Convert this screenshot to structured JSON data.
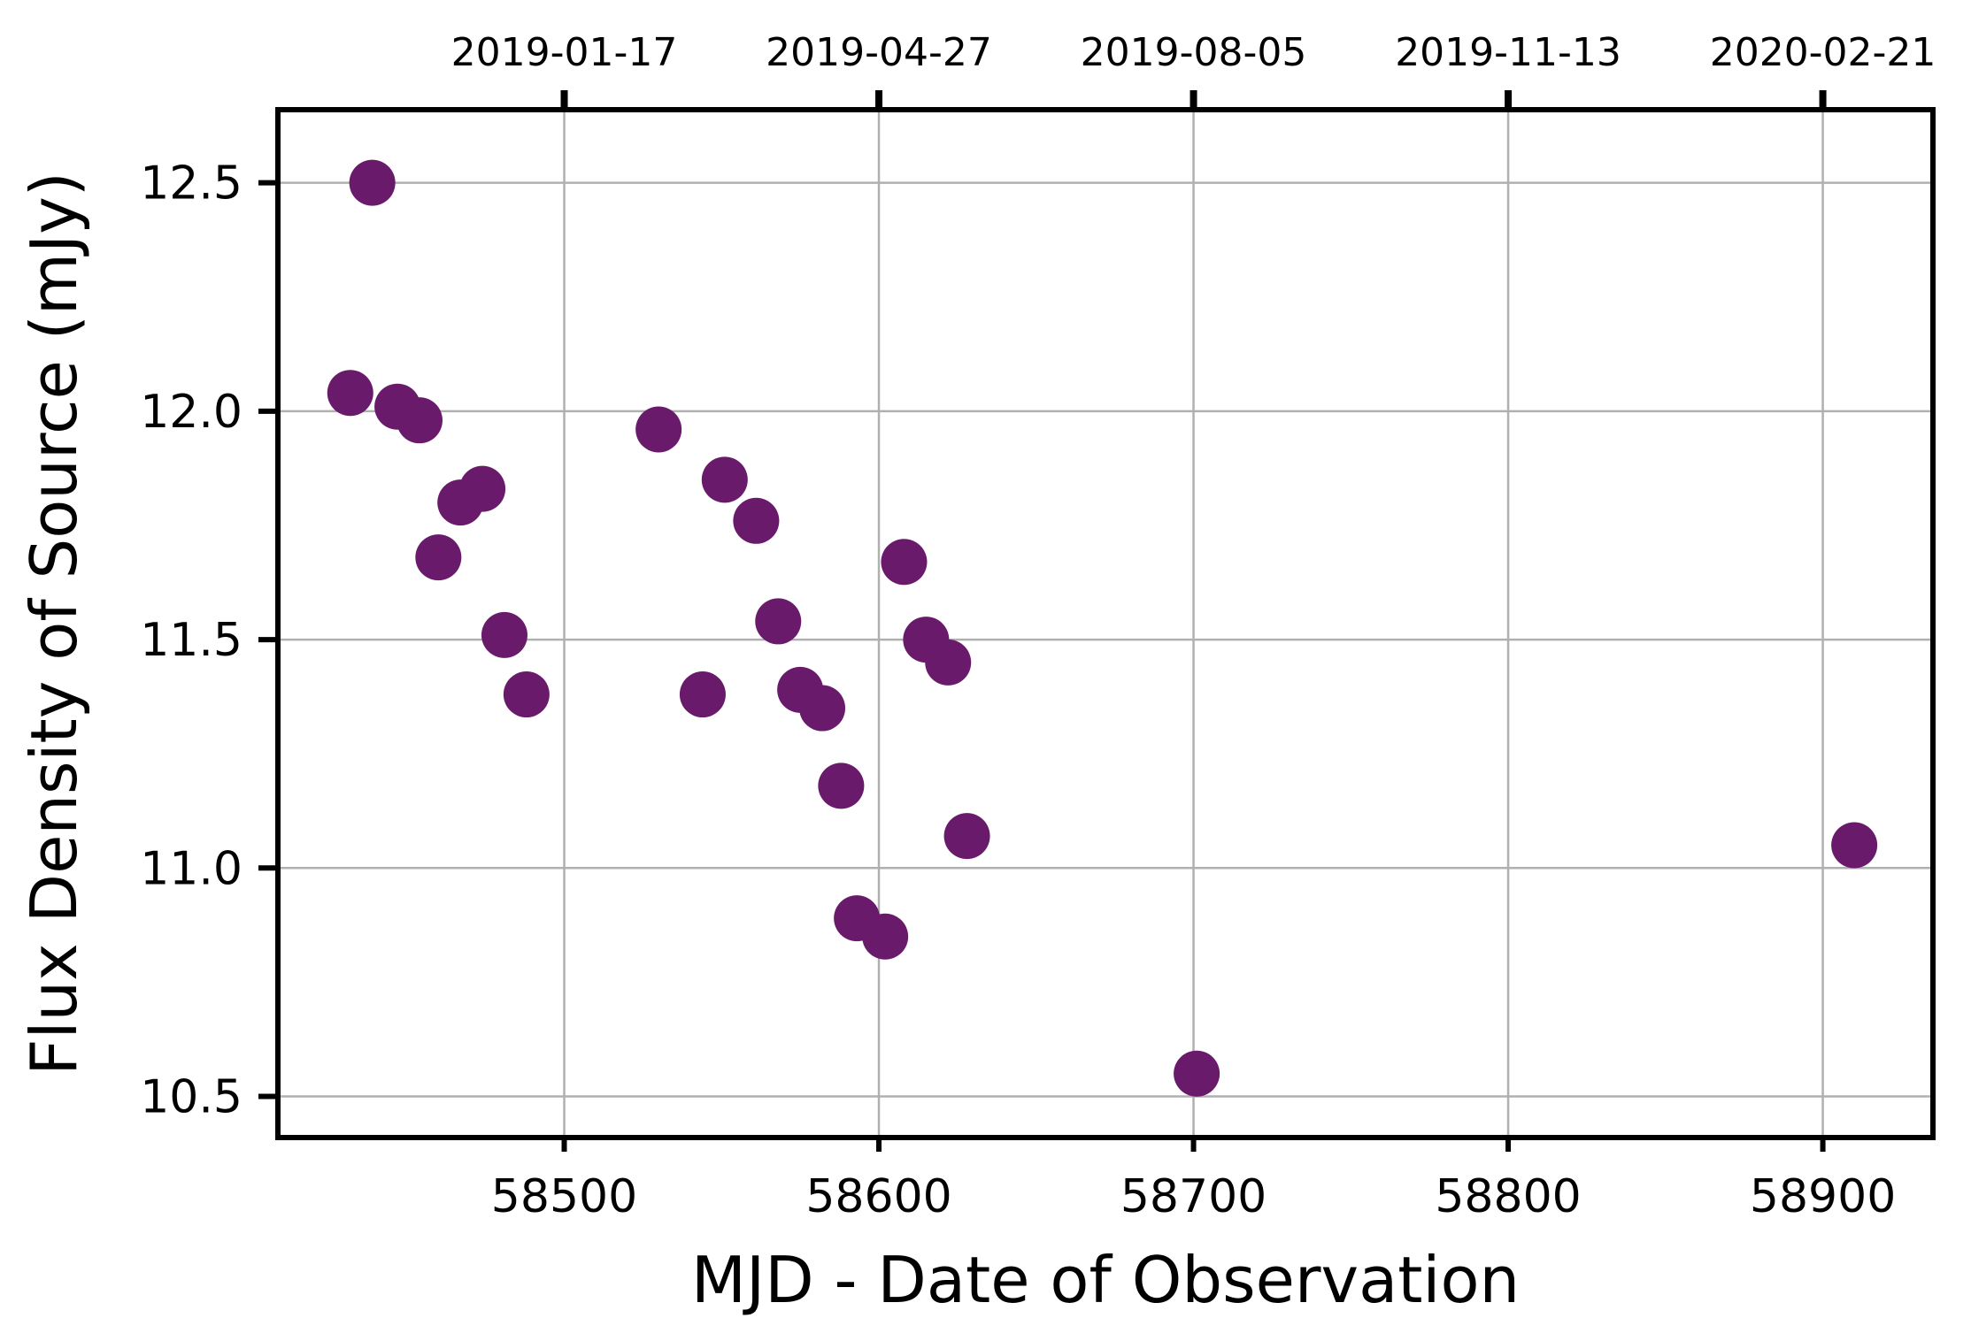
{
  "chart_data": {
    "type": "scatter",
    "title": "",
    "xlabel": "MJD - Date of Observation",
    "ylabel": "Flux Density of Source (mJy)",
    "xlim": [
      58409,
      58935
    ],
    "ylim": [
      10.41,
      12.66
    ],
    "x_ticks": [
      58500,
      58600,
      58700,
      58800,
      58900
    ],
    "x_tick_labels": [
      "58500",
      "58600",
      "58700",
      "58800",
      "58900"
    ],
    "y_ticks": [
      10.5,
      11.0,
      11.5,
      12.0,
      12.5
    ],
    "y_tick_labels": [
      "10.5",
      "11.0",
      "11.5",
      "12.0",
      "12.5"
    ],
    "top_axis": {
      "ticks": [
        58500,
        58600,
        58700,
        58800,
        58900
      ],
      "tick_labels": [
        "2019-01-17",
        "2019-04-27",
        "2019-08-05",
        "2019-11-13",
        "2020-02-21"
      ]
    },
    "grid": true,
    "legend": "none",
    "marker_color": "#6a1a6a",
    "series": [
      {
        "x": [
          58432,
          58439,
          58447,
          58454,
          58460,
          58467,
          58474,
          58481,
          58488,
          58530,
          58544,
          58551,
          58561,
          58568,
          58575,
          58582,
          58588,
          58593,
          58602,
          58608,
          58615,
          58622,
          58628,
          58701,
          58910
        ],
        "y": [
          12.04,
          12.5,
          12.01,
          11.98,
          11.68,
          11.8,
          11.83,
          11.51,
          11.38,
          11.96,
          11.38,
          11.85,
          11.76,
          11.54,
          11.39,
          11.35,
          11.18,
          10.89,
          10.85,
          11.67,
          11.5,
          11.45,
          11.07,
          10.55,
          11.05
        ]
      }
    ]
  }
}
